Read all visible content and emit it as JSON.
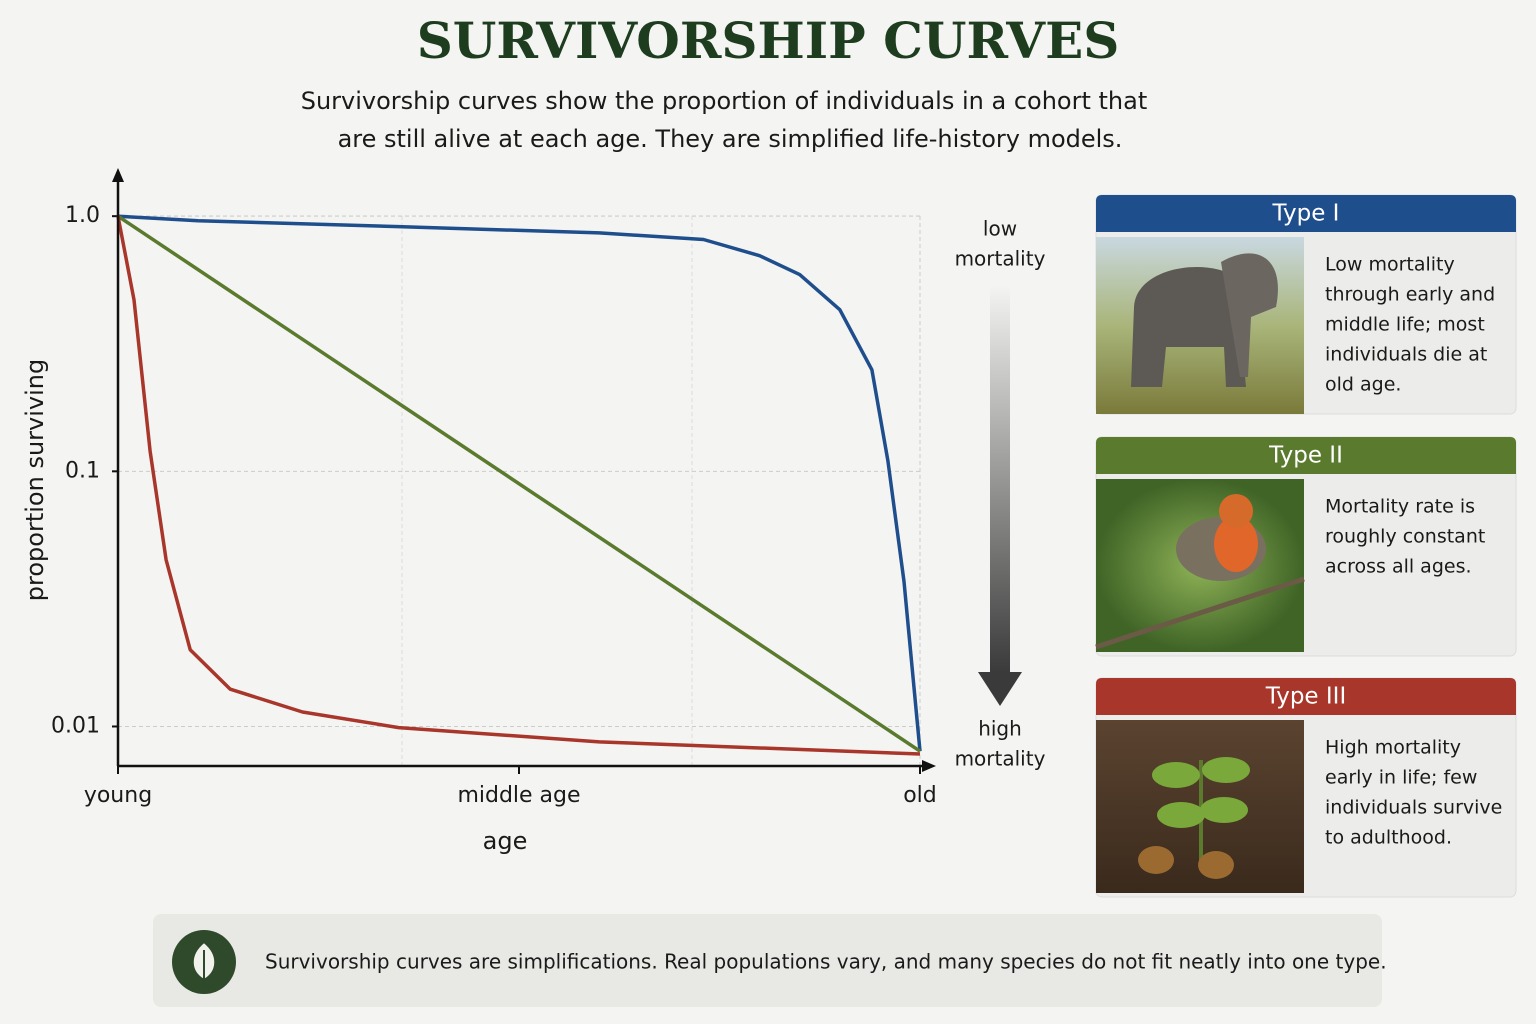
{
  "chart_data": {
    "type": "line",
    "title": "SURVIVORSHIP CURVES",
    "subtitle": [
      "Survivorship curves show the proportion of individuals in a cohort that",
      "are still alive at each age. They are simplified life-history models."
    ],
    "x_label": "age",
    "y_label": "proportion surviving",
    "log_y": true,
    "grid": true,
    "xlim": [
      0,
      1
    ],
    "xticks": [
      {
        "value": 0,
        "label": "young"
      },
      {
        "value": 0.5,
        "label": "middle age"
      },
      {
        "value": 1,
        "label": "old"
      }
    ],
    "ylim": [
      0.007,
      1.45
    ],
    "yticks": [
      {
        "value": 1,
        "label": "1.0"
      },
      0.1,
      0.01
    ],
    "series": [
      {
        "name": "Type I",
        "color": "#1f4e8c",
        "x": [
          0,
          0.1,
          0.35,
          0.6,
          0.73,
          0.8,
          0.85,
          0.9,
          0.94,
          0.96,
          0.98,
          1
        ],
        "values": [
          1,
          0.96,
          0.91,
          0.86,
          0.81,
          0.7,
          0.59,
          0.43,
          0.25,
          0.11,
          0.037,
          0.008
        ]
      },
      {
        "name": "Type II",
        "color": "#5a7a2e",
        "x": [
          0,
          1
        ],
        "values": [
          1,
          0.008
        ]
      },
      {
        "name": "Type III",
        "color": "#a8362b",
        "x": [
          0,
          0.02,
          0.04,
          0.06,
          0.09,
          0.14,
          0.23,
          0.35,
          0.6,
          1
        ],
        "values": [
          1,
          0.47,
          0.12,
          0.045,
          0.02,
          0.014,
          0.0114,
          0.0099,
          0.0087,
          0.0078
        ]
      }
    ]
  },
  "mortality_scale": {
    "top": [
      "low",
      "mortality"
    ],
    "bottom": [
      "high",
      "mortality"
    ]
  },
  "panels": [
    {
      "description": [
        "Low mortality",
        "through early and",
        "middle life; most",
        "individuals die at",
        "old age."
      ]
    },
    {
      "description": [
        "Mortality rate is",
        "roughly constant",
        "across all ages."
      ]
    },
    {
      "description": [
        "High mortality",
        "early in life; few",
        "individuals survive",
        "to adulthood."
      ]
    }
  ],
  "note": "Survivorship curves are simplifications. Real populations vary, and many species do not fit neatly into one type."
}
